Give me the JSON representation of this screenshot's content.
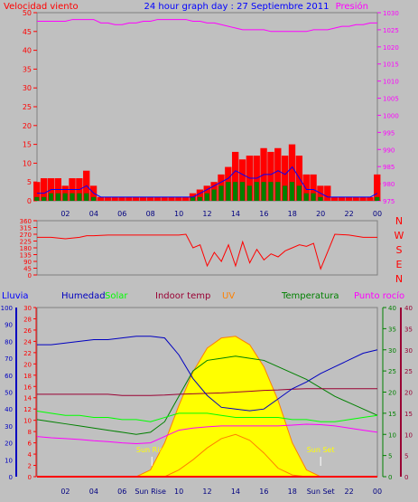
{
  "header": {
    "left_label": "Velocidad viento",
    "title": "24 hour graph day : 27 Septiembre 2011",
    "right_label": "Presión"
  },
  "colors": {
    "background": "#c0c0c0",
    "wind": "#ff0000",
    "gust_blue": "#0000ff",
    "green": "#008000",
    "pressure": "#ff00ff",
    "humidity": "#0000c0",
    "solar": "#00ff00",
    "indoor": "#990033",
    "uv": "#ff8000",
    "temperature": "#008000",
    "dewpoint": "#ff00ff",
    "rain": "#ff0000",
    "sun_fill": "#ffff00",
    "marker_label": "#ffff00"
  },
  "legend": {
    "lluvia": "Lluvia",
    "humedad": "Humedad",
    "solar": "Solar",
    "indoor": "Indoor temp",
    "uv": "UV",
    "temperatura": "Temperatura",
    "punto_rocio": "Punto rocío"
  },
  "compass": [
    "N",
    "W",
    "S",
    "E",
    "N"
  ],
  "chart_data": [
    {
      "type": "bar",
      "panel": "wind",
      "x_hours": [
        0,
        0.5,
        1,
        1.5,
        2,
        2.5,
        3,
        3.5,
        4,
        4.5,
        5,
        5.5,
        6,
        6.5,
        7,
        7.5,
        8,
        8.5,
        9,
        9.5,
        10,
        10.5,
        11,
        11.5,
        12,
        12.5,
        13,
        13.5,
        14,
        14.5,
        15,
        15.5,
        16,
        16.5,
        17,
        17.5,
        18,
        18.5,
        19,
        19.5,
        20,
        20.5,
        21,
        21.5,
        22,
        22.5,
        23,
        23.5,
        24
      ],
      "wind_speed": [
        5,
        6,
        6,
        6,
        4,
        6,
        6,
        8,
        4,
        1,
        1,
        1,
        1,
        1,
        1,
        1,
        1,
        1,
        1,
        1,
        1,
        1,
        2,
        3,
        4,
        5,
        7,
        9,
        13,
        11,
        12,
        12,
        14,
        13,
        14,
        12,
        15,
        12,
        7,
        7,
        4,
        4,
        1,
        1,
        1,
        1,
        1,
        1,
        7
      ],
      "gust": [
        2,
        2,
        3,
        3,
        3,
        3,
        3,
        4,
        2,
        1,
        1,
        1,
        1,
        1,
        1,
        1,
        1,
        1,
        1,
        1,
        1,
        1,
        1,
        2,
        3,
        4,
        5,
        6,
        8,
        7,
        6,
        6,
        7,
        7,
        8,
        7,
        9,
        6,
        3,
        3,
        2,
        1,
        1,
        1,
        1,
        1,
        1,
        1,
        2
      ],
      "avg": [
        1,
        1,
        2,
        2,
        2,
        2,
        2,
        2,
        1,
        0,
        0,
        0,
        0,
        0,
        0,
        0,
        0,
        0,
        0,
        0,
        0,
        0,
        1,
        1,
        2,
        3,
        4,
        5,
        5,
        5,
        4,
        5,
        5,
        5,
        5,
        4,
        5,
        4,
        2,
        2,
        1,
        0,
        0,
        0,
        0,
        0,
        0,
        0,
        1
      ],
      "pressure": [
        1027.5,
        1027.5,
        1027.5,
        1027.5,
        1027.5,
        1028,
        1028,
        1028,
        1028,
        1027,
        1027,
        1026.5,
        1026.5,
        1027,
        1027,
        1027.5,
        1027.5,
        1028,
        1028,
        1028,
        1028,
        1028,
        1027.5,
        1027.5,
        1027,
        1027,
        1026.5,
        1026,
        1025.5,
        1025,
        1025,
        1025,
        1025,
        1024.5,
        1024.5,
        1024.5,
        1024.5,
        1024.5,
        1024.5,
        1025,
        1025,
        1025,
        1025.5,
        1026,
        1026,
        1026.5,
        1026.5,
        1027,
        1027
      ],
      "ylim_left": [
        0,
        50
      ],
      "ylim_right": [
        975,
        1030
      ],
      "y_ticks_left": [
        0,
        5,
        10,
        15,
        20,
        25,
        30,
        35,
        40,
        45,
        50
      ],
      "y_ticks_right": [
        975,
        980,
        985,
        990,
        995,
        1000,
        1005,
        1010,
        1015,
        1020,
        1025,
        1030
      ],
      "x_tick_labels": [
        "02",
        "04",
        "06",
        "08",
        "10",
        "12",
        "14",
        "16",
        "18",
        "20",
        "22",
        "00"
      ]
    },
    {
      "type": "line",
      "panel": "wind_direction",
      "x_hours": [
        0,
        1,
        2,
        3,
        3.5,
        4,
        5,
        6,
        7,
        8,
        9,
        10,
        10.5,
        11,
        11.5,
        12,
        12.5,
        13,
        13.5,
        14,
        14.5,
        15,
        15.5,
        16,
        16.5,
        17,
        17.5,
        18,
        18.5,
        19,
        19.5,
        20,
        21,
        22,
        23,
        24
      ],
      "direction": [
        250,
        250,
        240,
        250,
        260,
        260,
        265,
        265,
        265,
        265,
        265,
        265,
        270,
        180,
        200,
        60,
        150,
        90,
        200,
        60,
        220,
        80,
        170,
        100,
        140,
        120,
        160,
        180,
        200,
        190,
        210,
        40,
        270,
        265,
        250,
        250
      ],
      "ylim": [
        0,
        360
      ],
      "y_ticks": [
        0,
        45,
        90,
        135,
        180,
        225,
        270,
        315,
        360
      ],
      "y_tick_labels": [
        "0",
        "45",
        "90",
        "135",
        "180",
        "225",
        "270",
        "315",
        "360"
      ]
    },
    {
      "type": "line",
      "panel": "main",
      "x_hours": [
        0,
        1,
        2,
        3,
        4,
        5,
        6,
        7,
        8,
        9,
        10,
        11,
        12,
        13,
        14,
        15,
        16,
        17,
        18,
        19,
        20,
        21,
        22,
        23,
        24
      ],
      "humidity": [
        78,
        78,
        79,
        80,
        81,
        81,
        82,
        83,
        83,
        82,
        72,
        58,
        48,
        41,
        40,
        39,
        40,
        46,
        52,
        56,
        61,
        65,
        69,
        73,
        75
      ],
      "solar": [
        15.5,
        15,
        14.5,
        14.5,
        14,
        14,
        13.5,
        13.5,
        13,
        14,
        15,
        15,
        15,
        14.5,
        14,
        14,
        14,
        14,
        13.5,
        13.5,
        13,
        13,
        13.5,
        14,
        14.5
      ],
      "indoor_temp": [
        19.5,
        19.5,
        19.5,
        19.5,
        19.5,
        19.5,
        19.2,
        19.2,
        19.2,
        19.3,
        19.5,
        19.6,
        19.7,
        19.8,
        20,
        20.2,
        20.4,
        20.5,
        20.7,
        20.8,
        20.8,
        20.8,
        20.8,
        20.8,
        20.8
      ],
      "uv": [
        0,
        0,
        0,
        0,
        0,
        0,
        0,
        0,
        0,
        0,
        0.8,
        2,
        3.4,
        4.5,
        5,
        4.3,
        2.8,
        1,
        0.2,
        0,
        0,
        0,
        0,
        0,
        0
      ],
      "temperature": [
        13.5,
        13,
        12.5,
        12,
        11.5,
        11,
        10.5,
        10,
        10.5,
        13,
        19,
        25,
        27.5,
        28,
        28.5,
        28,
        27.5,
        26,
        24.5,
        23,
        21,
        19,
        17.5,
        16,
        14.5
      ],
      "dewpoint": [
        9.5,
        9.2,
        9,
        8.8,
        8.5,
        8.3,
        8,
        7.8,
        8,
        9.5,
        11,
        11.5,
        11.8,
        12,
        12,
        12,
        12,
        12,
        12.2,
        12.4,
        12.3,
        12,
        11.5,
        11,
        10.5
      ],
      "sun_radiation": [
        0,
        0,
        0,
        0,
        0,
        0,
        0,
        0,
        40,
        200,
        420,
        620,
        760,
        820,
        830,
        780,
        650,
        450,
        200,
        40,
        0,
        0,
        0,
        0,
        0
      ],
      "rain": [
        0,
        0,
        0,
        0,
        0,
        0,
        0,
        0,
        0,
        0,
        0,
        0,
        0,
        0,
        0,
        0,
        0,
        0,
        0,
        0,
        0,
        0,
        0,
        0,
        0
      ],
      "ylim_humidity": [
        0,
        100
      ],
      "ylim_rain": [
        0,
        30
      ],
      "ylim_temperature": [
        0,
        40
      ],
      "y_ticks_humidity": [
        0,
        10,
        20,
        30,
        40,
        50,
        60,
        70,
        80,
        90,
        100
      ],
      "y_ticks_rain": [
        0,
        2,
        4,
        6,
        8,
        10,
        12,
        14,
        16,
        18,
        20,
        22,
        24,
        26,
        28,
        30
      ],
      "y_ticks_temperature": [
        0,
        5,
        10,
        15,
        20,
        25,
        30,
        35,
        40
      ],
      "x_tick_labels": [
        "02",
        "04",
        "06",
        "Sun Rise",
        "10",
        "12",
        "14",
        "16",
        "18",
        "Sun Set",
        "22",
        "00"
      ],
      "sunrise_label": "Sun Rise",
      "sunset_label": "Sun Set",
      "sunrise_hour": 8.1,
      "sunset_hour": 20.0
    }
  ]
}
